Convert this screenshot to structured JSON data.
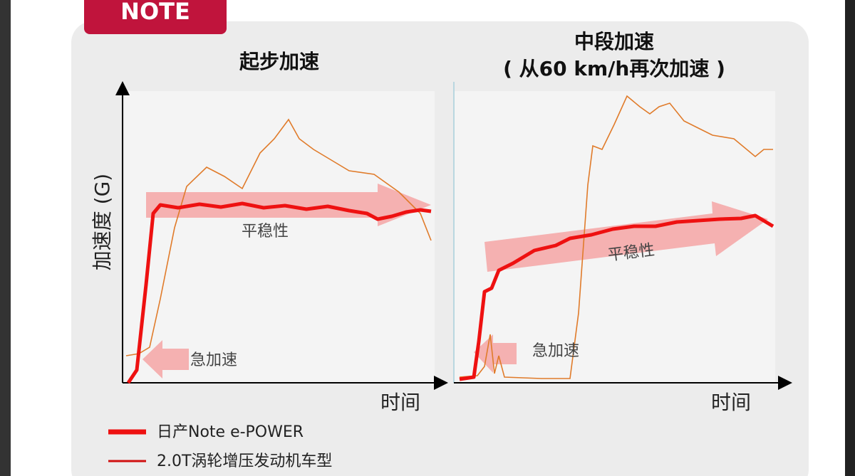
{
  "badge": "NOTE",
  "panels": [
    {
      "title": [
        "起步加速"
      ],
      "y_label": "加速度 (G)",
      "x_label": "时间",
      "smooth_label": "平稳性",
      "quick_label": "急加速"
    },
    {
      "title": [
        "中段加速",
        "( 从60 km/h再次加速 )"
      ],
      "x_label": "时间",
      "smooth_label": "平稳性",
      "quick_label": "急加速"
    }
  ],
  "legend": [
    "日产Note e-POWER",
    "2.0T涡轮增压发动机车型"
  ]
}
